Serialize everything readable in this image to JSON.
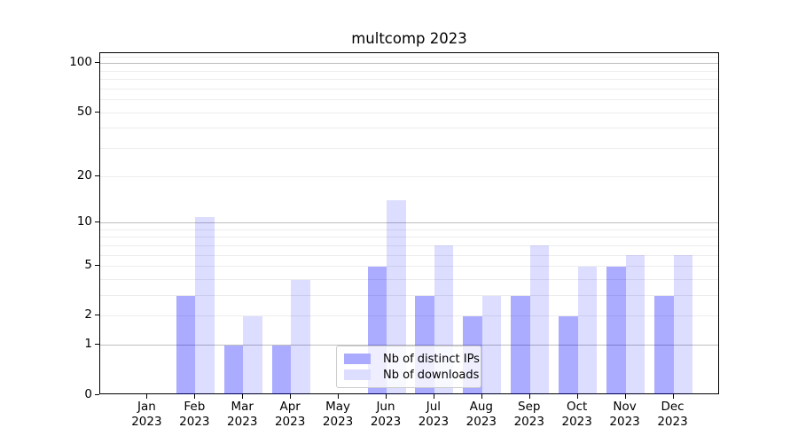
{
  "chart_data": {
    "type": "bar",
    "title": "multcomp 2023",
    "year": "2023",
    "categories": [
      "Jan",
      "Feb",
      "Mar",
      "Apr",
      "May",
      "Jun",
      "Jul",
      "Aug",
      "Sep",
      "Oct",
      "Nov",
      "Dec"
    ],
    "series": [
      {
        "key": "distinct-ips",
        "name": "Nb of distinct IPs",
        "color": "#aaaaff",
        "fill": "rgba(0,0,255,0.33)",
        "values": [
          0,
          3,
          1,
          1,
          0,
          5,
          3,
          2,
          3,
          2,
          5,
          3
        ]
      },
      {
        "key": "downloads",
        "name": "Nb of downloads",
        "color": "#ddddff",
        "fill": "rgba(0,0,255,0.135)",
        "values": [
          0,
          11,
          2,
          4,
          0,
          14,
          7,
          3,
          7,
          5,
          6,
          6
        ]
      }
    ],
    "yscale": "log1p",
    "ylim": [
      0,
      116
    ],
    "yticks": [
      0,
      1,
      2,
      5,
      10,
      20,
      50,
      100
    ],
    "grid": {
      "major_values": [
        1,
        10,
        100
      ],
      "minor_values": [
        2,
        3,
        4,
        5,
        6,
        7,
        8,
        9,
        20,
        30,
        40,
        50,
        60,
        70,
        80,
        90,
        110
      ],
      "major_color": "#bdbdbd",
      "minor_color": "#ececec"
    },
    "legend": {
      "position": "lower-center",
      "frame_color": "#cccccc",
      "background": "rgba(255,255,255,0.8)"
    },
    "xlabel": "",
    "ylabel": ""
  }
}
